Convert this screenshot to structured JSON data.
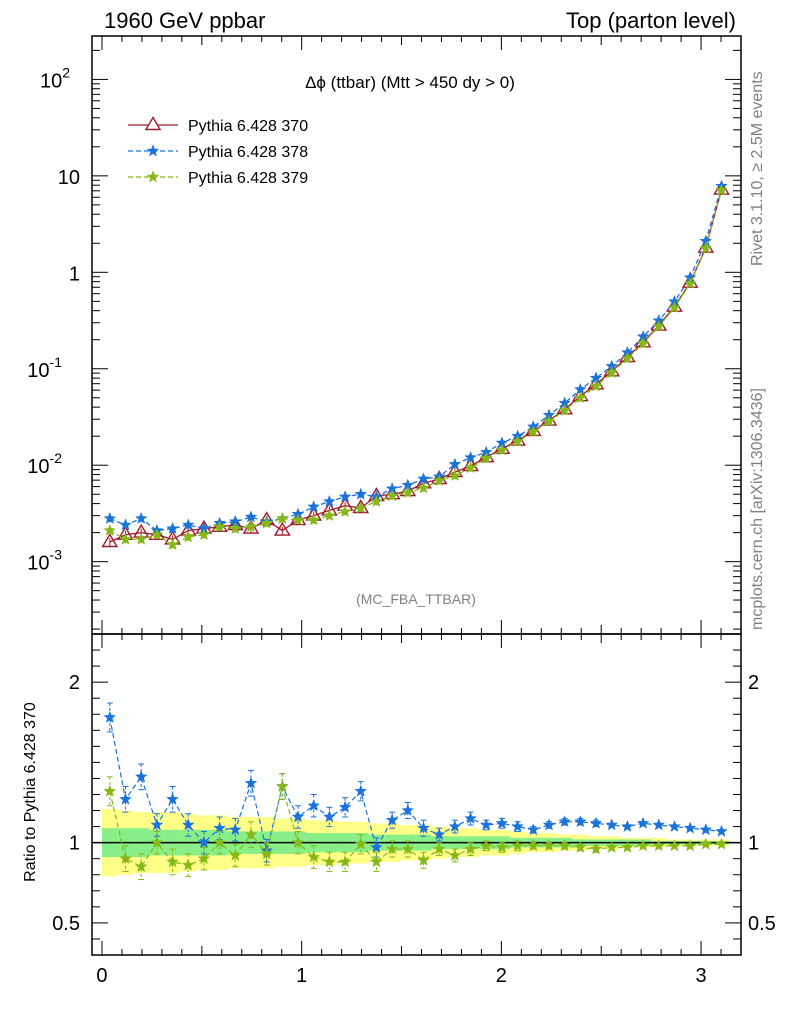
{
  "header": {
    "left": "1960 GeV ppbar",
    "right": "Top (parton level)"
  },
  "side": {
    "rivet": "Rivet 3.1.10, ≥ 2.5M events",
    "mcplots": "mcplots.cern.ch [arXiv:1306.3436]"
  },
  "watermark": "(MC_FBA_TTBAR)",
  "chart_data": [
    {
      "type": "line",
      "title": "Δϕ (ttbar) (Mtt > 450 dy > 0)",
      "xlim": [
        -0.05,
        3.2
      ],
      "ylim_log10": [
        -3.75,
        2.45
      ],
      "yscale": "log",
      "x_ticks": [
        "0",
        "1",
        "2",
        "3"
      ],
      "y_ticks": [
        {
          "label": "10",
          "exp": "-3",
          "value": 0.001
        },
        {
          "label": "10",
          "exp": "-2",
          "value": 0.01
        },
        {
          "label": "10",
          "exp": "-1",
          "value": 0.1
        },
        {
          "label": "1",
          "exp": "",
          "value": 1
        },
        {
          "label": "10",
          "exp": "",
          "value": 10
        },
        {
          "label": "10",
          "exp": "2",
          "value": 100
        }
      ],
      "legend_position": "top-left",
      "x": [
        0.0393,
        0.1178,
        0.1963,
        0.2749,
        0.3534,
        0.432,
        0.5105,
        0.589,
        0.6676,
        0.7461,
        0.8247,
        0.9032,
        0.9817,
        1.0603,
        1.1388,
        1.2174,
        1.2959,
        1.3744,
        1.453,
        1.5315,
        1.6101,
        1.6886,
        1.7671,
        1.8457,
        1.9242,
        2.0028,
        2.0813,
        2.1598,
        2.2384,
        2.3169,
        2.3955,
        2.474,
        2.5525,
        2.6311,
        2.7096,
        2.7882,
        2.8667,
        2.9452,
        3.0238,
        3.1023
      ],
      "series": [
        {
          "name": "Pythia 6.428 370",
          "color": "#a01a2c",
          "marker": "triangle-open",
          "linestyle": "solid",
          "values": [
            0.0016,
            0.0019,
            0.002,
            0.0019,
            0.0017,
            0.0021,
            0.0022,
            0.0023,
            0.0024,
            0.0022,
            0.0027,
            0.0021,
            0.0027,
            0.003,
            0.0034,
            0.0038,
            0.0036,
            0.0048,
            0.005,
            0.0054,
            0.0065,
            0.0072,
            0.0085,
            0.0098,
            0.0121,
            0.0148,
            0.018,
            0.0227,
            0.029,
            0.038,
            0.052,
            0.069,
            0.094,
            0.132,
            0.188,
            0.28,
            0.44,
            0.78,
            1.8,
            7.2
          ]
        },
        {
          "name": "Pythia 6.428 378",
          "color": "#1a73d9",
          "marker": "star",
          "linestyle": "dashed",
          "values": [
            0.0028,
            0.0024,
            0.0028,
            0.0021,
            0.0022,
            0.0024,
            0.0022,
            0.0025,
            0.0026,
            0.0029,
            0.0026,
            0.0028,
            0.0031,
            0.0037,
            0.0042,
            0.0047,
            0.005,
            0.0047,
            0.0057,
            0.0062,
            0.0072,
            0.0076,
            0.0102,
            0.012,
            0.0136,
            0.017,
            0.02,
            0.025,
            0.033,
            0.044,
            0.061,
            0.08,
            0.106,
            0.147,
            0.215,
            0.315,
            0.496,
            0.88,
            2.1,
            7.8
          ]
        },
        {
          "name": "Pythia 6.428 379",
          "color": "#86b817",
          "marker": "star",
          "linestyle": "dashed",
          "values": [
            0.0021,
            0.0017,
            0.0017,
            0.0019,
            0.0015,
            0.0018,
            0.0019,
            0.0023,
            0.0022,
            0.0023,
            0.0025,
            0.0028,
            0.0027,
            0.0027,
            0.003,
            0.0033,
            0.0036,
            0.0042,
            0.0048,
            0.0052,
            0.0058,
            0.0069,
            0.0078,
            0.0094,
            0.0118,
            0.0143,
            0.0176,
            0.0222,
            0.0285,
            0.037,
            0.05,
            0.066,
            0.091,
            0.128,
            0.183,
            0.275,
            0.43,
            0.765,
            1.78,
            7.1
          ]
        }
      ]
    },
    {
      "type": "line",
      "ylabel": "Ratio to Pythia 6.428 370",
      "xlim": [
        -0.05,
        3.2
      ],
      "ylim": [
        0.3,
        2.3
      ],
      "x_ticks": [
        "0",
        "1",
        "2",
        "3"
      ],
      "y_ticks": [
        "0.5",
        "1",
        "2"
      ],
      "y_tick_values": [
        0.5,
        1,
        2
      ],
      "reference_line": 1,
      "band_yellow_half_width": [
        0.21,
        0.2,
        0.19,
        0.19,
        0.19,
        0.18,
        0.17,
        0.17,
        0.16,
        0.16,
        0.16,
        0.15,
        0.15,
        0.14,
        0.14,
        0.13,
        0.13,
        0.12,
        0.12,
        0.11,
        0.11,
        0.1,
        0.09,
        0.09,
        0.08,
        0.08,
        0.07,
        0.06,
        0.06,
        0.05,
        0.05,
        0.04,
        0.04,
        0.03,
        0.03,
        0.03,
        0.02,
        0.02,
        0.02,
        0.02
      ],
      "band_green_half_width": [
        0.09,
        0.09,
        0.09,
        0.08,
        0.08,
        0.08,
        0.08,
        0.08,
        0.07,
        0.07,
        0.07,
        0.07,
        0.07,
        0.06,
        0.06,
        0.06,
        0.06,
        0.05,
        0.05,
        0.05,
        0.05,
        0.04,
        0.04,
        0.04,
        0.04,
        0.04,
        0.03,
        0.03,
        0.03,
        0.03,
        0.02,
        0.02,
        0.02,
        0.02,
        0.02,
        0.01,
        0.01,
        0.01,
        0.01,
        0.01
      ],
      "series": [
        {
          "name": "Pythia 6.428 378",
          "color": "#1a73d9",
          "values": [
            1.78,
            1.27,
            1.41,
            1.11,
            1.27,
            1.11,
            1.0,
            1.09,
            1.08,
            1.37,
            0.95,
            1.35,
            1.16,
            1.23,
            1.16,
            1.22,
            1.32,
            0.97,
            1.14,
            1.2,
            1.09,
            1.05,
            1.1,
            1.15,
            1.11,
            1.12,
            1.1,
            1.08,
            1.11,
            1.13,
            1.13,
            1.12,
            1.11,
            1.1,
            1.12,
            1.11,
            1.1,
            1.09,
            1.08,
            1.07
          ],
          "errors": [
            0.09,
            0.08,
            0.08,
            0.07,
            0.08,
            0.07,
            0.07,
            0.07,
            0.07,
            0.08,
            0.07,
            0.08,
            0.07,
            0.07,
            0.06,
            0.06,
            0.06,
            0.06,
            0.05,
            0.05,
            0.05,
            0.04,
            0.04,
            0.04,
            0.03,
            0.03,
            0.03,
            0.02,
            0.02,
            0.02,
            0.02,
            0.02,
            0.01,
            0.01,
            0.01,
            0.01,
            0.01,
            0.01,
            0.01,
            0.01
          ]
        },
        {
          "name": "Pythia 6.428 379",
          "color": "#86b817",
          "values": [
            1.32,
            0.9,
            0.85,
            1.0,
            0.88,
            0.86,
            0.9,
            1.0,
            0.92,
            1.05,
            0.93,
            1.35,
            1.0,
            0.91,
            0.88,
            0.88,
            0.99,
            0.88,
            0.96,
            0.96,
            0.89,
            0.96,
            0.92,
            0.96,
            0.98,
            0.97,
            0.98,
            0.98,
            0.98,
            0.98,
            0.97,
            0.96,
            0.97,
            0.97,
            0.98,
            0.98,
            0.98,
            0.98,
            0.99,
            0.99
          ],
          "errors": [
            0.09,
            0.08,
            0.08,
            0.07,
            0.08,
            0.07,
            0.07,
            0.07,
            0.07,
            0.08,
            0.07,
            0.08,
            0.07,
            0.07,
            0.06,
            0.06,
            0.06,
            0.06,
            0.05,
            0.05,
            0.05,
            0.04,
            0.04,
            0.04,
            0.03,
            0.03,
            0.03,
            0.02,
            0.02,
            0.02,
            0.02,
            0.02,
            0.01,
            0.01,
            0.01,
            0.01,
            0.01,
            0.01,
            0.01,
            0.01
          ]
        }
      ]
    }
  ]
}
